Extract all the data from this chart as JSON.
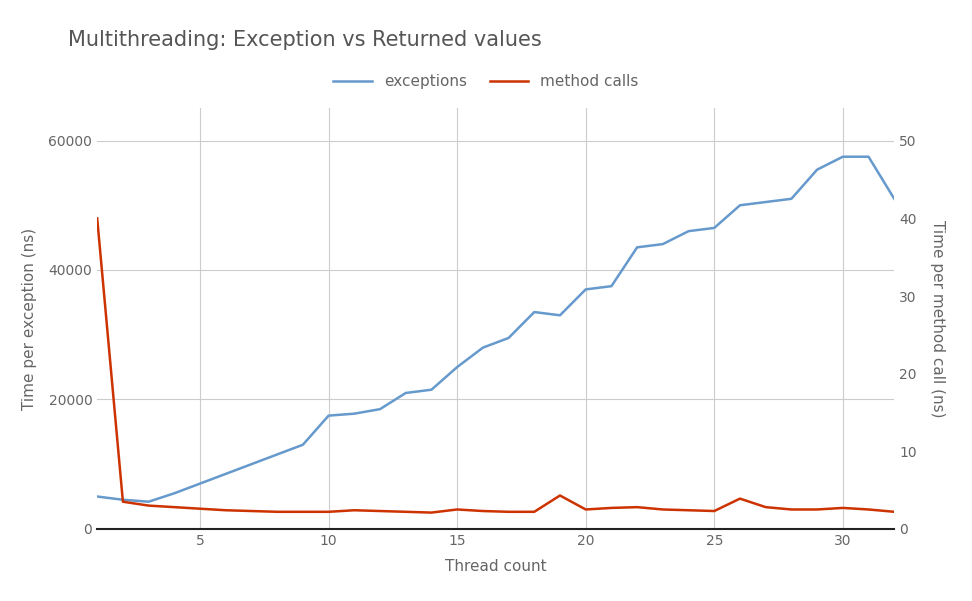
{
  "title": "Multithreading: Exception vs Returned values",
  "xlabel": "Thread count",
  "ylabel_left": "Time per exception (ns)",
  "ylabel_right": "Time per method call (ns)",
  "legend_labels": [
    "exceptions",
    "method calls"
  ],
  "blue_color": "#6699cc",
  "red_color": "#cc3300",
  "background_color": "#ffffff",
  "grid_color": "#cccccc",
  "title_color": "#555555",
  "label_color": "#666666",
  "exceptions_x": [
    1,
    2,
    3,
    4,
    5,
    6,
    7,
    8,
    9,
    10,
    11,
    12,
    13,
    14,
    15,
    16,
    17,
    18,
    19,
    20,
    21,
    22,
    23,
    24,
    25,
    26,
    27,
    28,
    29,
    30,
    31,
    32
  ],
  "exceptions_y": [
    5000,
    4500,
    4200,
    5500,
    7000,
    8500,
    10000,
    11500,
    13000,
    17500,
    17800,
    18500,
    21000,
    21500,
    25000,
    28000,
    29500,
    33500,
    33000,
    37000,
    37500,
    43500,
    44000,
    46000,
    46500,
    50000,
    50500,
    51000,
    55500,
    57500,
    57500,
    51000
  ],
  "method_x": [
    1,
    2,
    3,
    4,
    5,
    6,
    7,
    8,
    9,
    10,
    11,
    12,
    13,
    14,
    15,
    16,
    17,
    18,
    19,
    20,
    21,
    22,
    23,
    24,
    25,
    26,
    27,
    28,
    29,
    30,
    31,
    32
  ],
  "method_y": [
    40.0,
    3.5,
    3.0,
    2.8,
    2.6,
    2.4,
    2.3,
    2.2,
    2.2,
    2.2,
    2.4,
    2.3,
    2.2,
    2.1,
    2.5,
    2.3,
    2.2,
    2.2,
    4.3,
    2.5,
    2.7,
    2.8,
    2.5,
    2.4,
    2.3,
    3.9,
    2.8,
    2.5,
    2.5,
    2.7,
    2.5,
    2.2
  ],
  "ylim_left": [
    0,
    65000
  ],
  "ylim_right": [
    0,
    54.2
  ],
  "yticks_left": [
    0,
    20000,
    40000,
    60000
  ],
  "yticks_right": [
    0,
    10,
    20,
    30,
    40,
    50
  ],
  "xlim": [
    1,
    32
  ],
  "xticks": [
    5,
    10,
    15,
    20,
    25,
    30
  ],
  "line_width": 1.8,
  "figsize": [
    9.72,
    6.01
  ],
  "dpi": 100
}
